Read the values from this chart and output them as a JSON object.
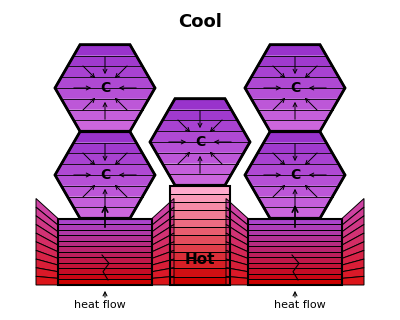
{
  "fig_width": 4.0,
  "fig_height": 3.2,
  "dpi": 100,
  "bg_color": "#ffffff",
  "cool_label": "Cool",
  "hot_label": "Hot",
  "heat_flow_label": "heat flow",
  "center_label": "C",
  "hex_color": "#9933cc",
  "hex_edge": "#000000",
  "col_top_color_lr": "#9933cc",
  "col_bot_color_lr": "#cc0000",
  "col_top_color_ctr": "#ff99bb",
  "col_bot_color_ctr": "#cc0000",
  "side_colors": [
    "#ff44aa",
    "#ff66bb",
    "#dd44aa",
    "#cc33aa"
  ],
  "n_col_stripes": 12,
  "n_hex_stripes": 8,
  "arrow_color": "#000000"
}
